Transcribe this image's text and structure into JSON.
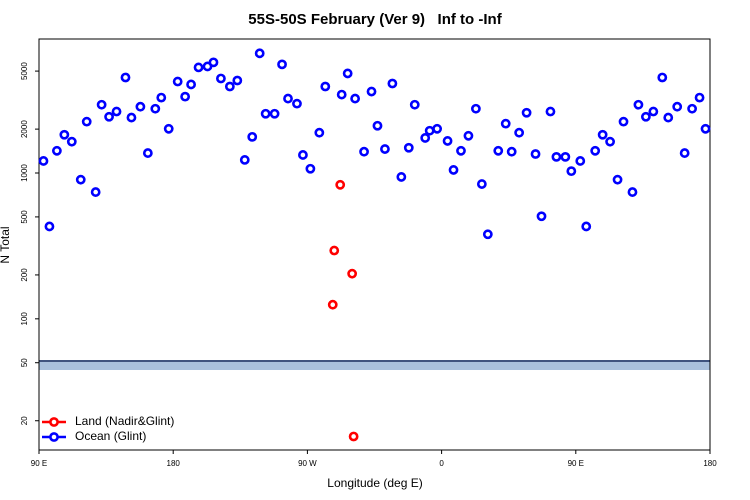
{
  "chart_data": {
    "type": "scatter",
    "title": "55S-50S February (Ver 9)   Inf to -Inf",
    "x_label": "Longitude (deg E)",
    "y_label": "N Total",
    "log_y": true,
    "legend": "lower left",
    "xlim": [
      90,
      540
    ],
    "xticks": [
      {
        "value": 90,
        "label": "90 E"
      },
      180,
      {
        "value": 270,
        "label": "90 W"
      },
      {
        "value": 360,
        "label": "0"
      },
      {
        "value": 450,
        "label": "90 E"
      },
      {
        "value": 540,
        "label": "180"
      }
    ],
    "ylim": [
      12.6,
      8300
    ],
    "yticks": [
      20,
      50,
      100,
      200,
      500,
      1000,
      2000,
      5000
    ],
    "series": [
      {
        "name": "Land (Nadir&Glint)",
        "color": "#ff0000",
        "x": [
          292,
          288,
          300,
          287,
          301
        ],
        "values": [
          830,
          294,
          204,
          125,
          15.6
        ]
      },
      {
        "name": "Ocean (Glint)",
        "color": "#0000ff",
        "x": [
          93,
          97,
          102,
          107,
          112,
          118,
          122,
          128,
          132,
          137,
          142,
          148,
          152,
          158,
          163,
          168,
          172,
          177,
          183,
          188,
          192,
          197,
          203,
          207,
          212,
          218,
          223,
          228,
          233,
          238,
          242,
          248,
          253,
          257,
          263,
          267,
          272,
          278,
          282,
          293,
          297,
          302,
          308,
          313,
          317,
          322,
          327,
          333,
          338,
          342,
          349,
          352,
          357,
          364,
          368,
          373,
          378,
          383,
          387,
          391,
          398,
          403,
          407,
          412,
          417,
          423,
          427,
          433,
          437,
          443,
          447,
          453,
          457,
          463,
          468,
          473,
          478,
          482,
          488,
          492,
          497,
          502,
          508,
          512,
          518,
          523,
          528,
          533,
          537
        ],
        "values": [
          1210,
          430,
          1420,
          1830,
          1640,
          900,
          2250,
          740,
          2940,
          2430,
          2640,
          4520,
          2400,
          2850,
          1370,
          2760,
          3290,
          2010,
          4240,
          3340,
          4050,
          5300,
          5380,
          5740,
          4450,
          3920,
          4310,
          1230,
          1770,
          6620,
          2550,
          2550,
          5560,
          3240,
          2990,
          1330,
          1070,
          1890,
          3920,
          3450,
          4820,
          3240,
          1400,
          3620,
          2110,
          1460,
          4110,
          940,
          1490,
          2940,
          1740,
          1950,
          2010,
          1660,
          1050,
          1420,
          1800,
          2760,
          840,
          380,
          1420,
          2180,
          1400,
          1890,
          2590,
          1350,
          505,
          2640,
          1290,
          1290,
          1030,
          1210,
          430,
          1420,
          1830,
          1640,
          900,
          2250,
          740,
          2940,
          2430,
          2640,
          4520,
          2400,
          2850,
          1370,
          2760,
          3290,
          2010
        ]
      }
    ]
  }
}
